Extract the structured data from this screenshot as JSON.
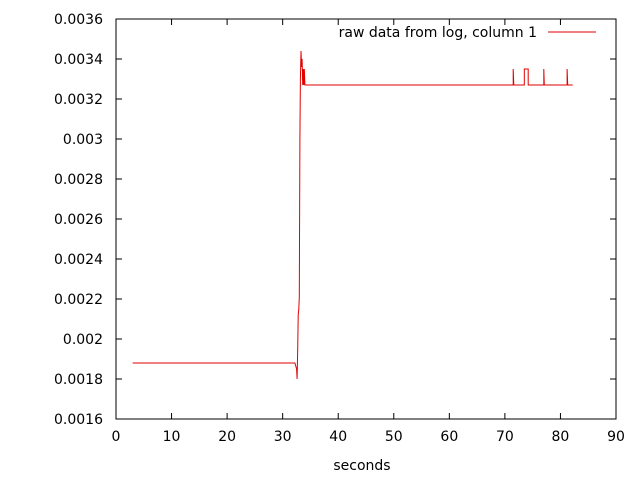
{
  "chart_data": {
    "type": "line",
    "xlabel": "seconds",
    "ylabel": "",
    "xlim": [
      0,
      90
    ],
    "ylim": [
      0.0016,
      0.0036
    ],
    "x_ticks": [
      "0",
      "10",
      "20",
      "30",
      "40",
      "50",
      "60",
      "70",
      "80",
      "90"
    ],
    "y_ticks": [
      "0.0016",
      "0.0018",
      "0.002",
      "0.0022",
      "0.0024",
      "0.0026",
      "0.0028",
      "0.003",
      "0.0032",
      "0.0034",
      "0.0036"
    ],
    "grid": false,
    "legend_position": "top-right",
    "series": [
      {
        "name": "raw data from log, column 1",
        "color": "#e00000",
        "x": [
          3,
          32.2,
          32.5,
          32.6,
          32.7,
          32.8,
          32.9,
          33.0,
          33.1,
          33.2,
          33.3,
          33.4,
          33.5,
          33.6,
          33.7,
          33.8,
          33.9,
          34.0,
          34.1,
          34.2,
          71.5,
          71.5,
          71.6,
          73.5,
          73.5,
          74.2,
          74.2,
          74.3,
          77.0,
          77.0,
          77.1,
          81.2,
          81.2,
          81.3,
          82.2
        ],
        "y": [
          0.00188,
          0.00188,
          0.00185,
          0.0018,
          0.00195,
          0.00212,
          0.00215,
          0.00221,
          0.003,
          0.0033,
          0.00344,
          0.00336,
          0.0034,
          0.00327,
          0.00335,
          0.00327,
          0.00335,
          0.00327,
          0.00327,
          0.00327,
          0.00327,
          0.00335,
          0.00327,
          0.00327,
          0.00335,
          0.00335,
          0.00327,
          0.00327,
          0.00327,
          0.00335,
          0.00327,
          0.00327,
          0.00335,
          0.00327,
          0.00327
        ]
      }
    ]
  }
}
